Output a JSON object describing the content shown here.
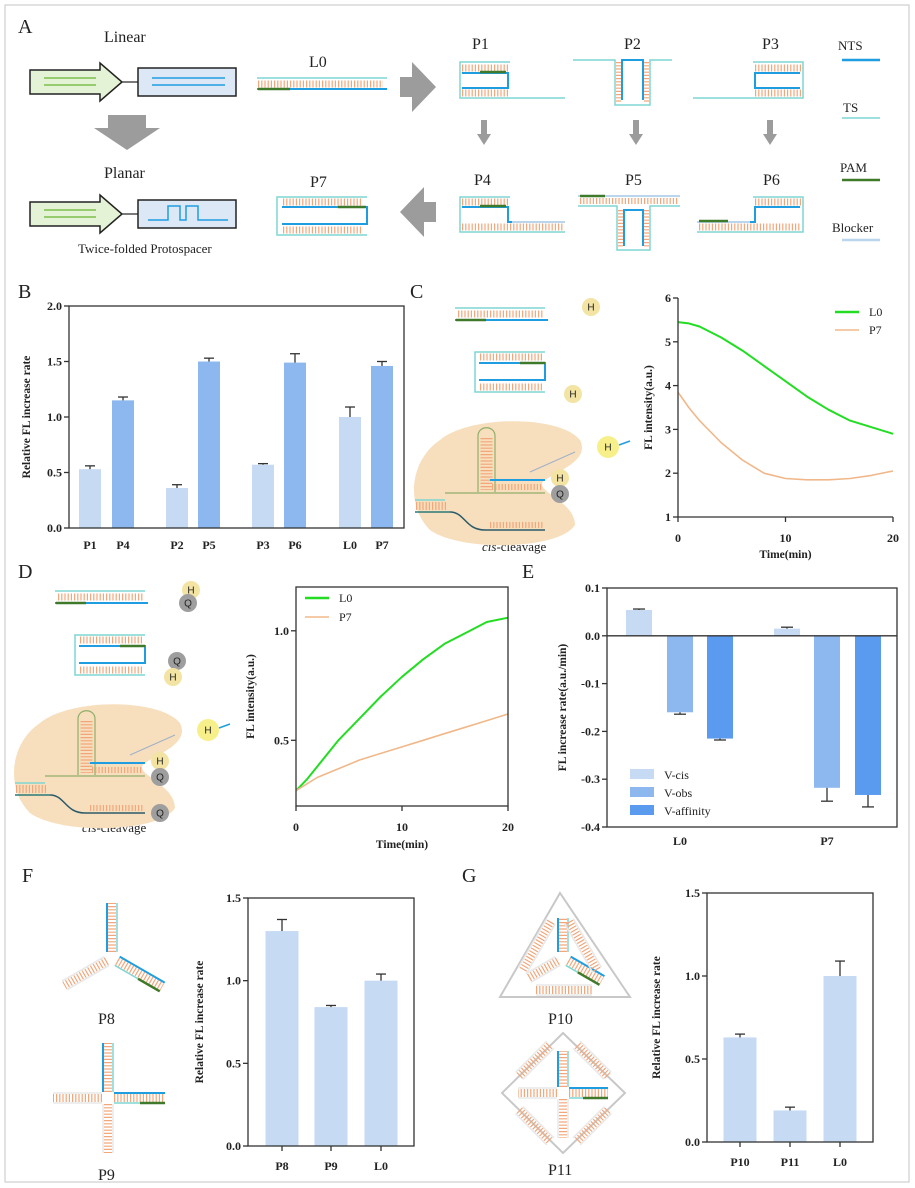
{
  "panels": {
    "A": "A",
    "B": "B",
    "C": "C",
    "D": "D",
    "E": "E",
    "F": "F",
    "G": "G"
  },
  "panel_a": {
    "linear": "Linear",
    "planar": "Planar",
    "twice_folded": "Twice-folded Protospacer",
    "structures": {
      "L0": "L0",
      "P1": "P1",
      "P2": "P2",
      "P3": "P3",
      "P4": "P4",
      "P5": "P5",
      "P6": "P6",
      "P7": "P7"
    },
    "legend": [
      {
        "label": "NTS",
        "color": "#1e9ee0"
      },
      {
        "label": "TS",
        "color": "#7fd6d2"
      },
      {
        "label": "PAM",
        "color": "#3f7a2a"
      },
      {
        "label": "Blocker",
        "color": "#b9d6ee"
      }
    ]
  },
  "panel_c": {
    "hex": "H",
    "quencher": "Q",
    "caption_italic": "cis",
    "caption_rest": "-cleavage"
  },
  "panel_d": {
    "hex": "H",
    "quencher": "Q",
    "caption_italic": "cis",
    "caption_rest": "-cleavage"
  },
  "panel_f": {
    "structures": {
      "P8": "P8",
      "P9": "P9"
    }
  },
  "panel_g": {
    "structures": {
      "P10": "P10",
      "P11": "P11"
    }
  },
  "colors": {
    "light_bar": "#c6daf4",
    "mid_bar": "#8db8ef",
    "dark_bar": "#5a9bef",
    "L0_line": "#22dd22",
    "P7_line": "#f0b88a",
    "NTS": "#1e9ee0",
    "TS": "#7fd6d2",
    "PAM": "#3f7a2a",
    "rungs": "#f2a67a",
    "cas": "#f7dfbd",
    "hex": "#f3e4a4",
    "quencher": "#9e9e9e"
  },
  "chart_data": [
    {
      "panel": "B",
      "type": "bar",
      "categories": [
        "P1",
        "P4",
        "P2",
        "P5",
        "P3",
        "P6",
        "L0",
        "P7"
      ],
      "values": [
        0.53,
        1.15,
        0.36,
        1.5,
        0.57,
        1.49,
        1.0,
        1.46
      ],
      "errors": [
        0.03,
        0.03,
        0.03,
        0.03,
        0.01,
        0.08,
        0.09,
        0.04
      ],
      "bar_colors": [
        "#c6daf4",
        "#8db8ef",
        "#c6daf4",
        "#8db8ef",
        "#c6daf4",
        "#8db8ef",
        "#c6daf4",
        "#8db8ef"
      ],
      "ylabel": "Relative FL increase rate",
      "xlabel": "",
      "ylim": [
        0,
        2
      ],
      "yticks": [
        0,
        0.5,
        1,
        1.5,
        2
      ],
      "ytick_labels": [
        "0.0",
        "0.5",
        "1.0",
        "1.5",
        "2.0"
      ],
      "grid": false
    },
    {
      "panel": "C",
      "type": "line",
      "x": [
        0,
        1,
        2,
        4,
        6,
        8,
        10,
        12,
        14,
        16,
        18,
        20
      ],
      "series": [
        {
          "name": "L0",
          "color": "#22dd22",
          "values": [
            5.45,
            5.42,
            5.35,
            5.1,
            4.8,
            4.45,
            4.1,
            3.75,
            3.45,
            3.2,
            3.05,
            2.9
          ]
        },
        {
          "name": "P7",
          "color": "#f0b88a",
          "values": [
            3.85,
            3.5,
            3.2,
            2.7,
            2.3,
            2.0,
            1.88,
            1.85,
            1.85,
            1.88,
            1.95,
            2.05
          ]
        }
      ],
      "xlabel": "Time(min)",
      "ylabel": "FL intensity(a.u.)",
      "xlim": [
        0,
        20
      ],
      "xticks": [
        0,
        10,
        20
      ],
      "xtick_labels": [
        "0",
        "10",
        "20"
      ],
      "ylim": [
        1,
        6
      ],
      "yticks": [
        1,
        2,
        3,
        4,
        5,
        6
      ],
      "ytick_labels": [
        "1",
        "2",
        "3",
        "4",
        "5",
        "6"
      ],
      "legend": "top-right",
      "grid": false
    },
    {
      "panel": "D",
      "type": "line",
      "x": [
        0,
        1,
        2,
        4,
        6,
        8,
        10,
        12,
        14,
        16,
        18,
        20
      ],
      "series": [
        {
          "name": "L0",
          "color": "#22dd22",
          "values": [
            0.27,
            0.32,
            0.38,
            0.5,
            0.6,
            0.7,
            0.79,
            0.87,
            0.94,
            0.99,
            1.04,
            1.06
          ]
        },
        {
          "name": "P7",
          "color": "#f0b88a",
          "values": [
            0.27,
            0.3,
            0.33,
            0.37,
            0.41,
            0.44,
            0.47,
            0.5,
            0.53,
            0.56,
            0.59,
            0.62
          ]
        }
      ],
      "xlabel": "Time(min)",
      "ylabel": "FL intensity(a.u.)",
      "xlim": [
        0,
        20
      ],
      "xticks": [
        0,
        10,
        20
      ],
      "xtick_labels": [
        "0",
        "10",
        "20"
      ],
      "ylim": [
        0.2,
        1.2
      ],
      "yticks": [
        0.5,
        1.0
      ],
      "ytick_labels": [
        "0.5",
        "1.0"
      ],
      "legend": "top-left",
      "grid": false
    },
    {
      "panel": "E",
      "type": "bar",
      "categories": [
        "L0",
        "P7"
      ],
      "series": [
        {
          "name": "V-cis",
          "color": "#c6daf4",
          "values": [
            0.054,
            0.015
          ],
          "errors": [
            0.002,
            0.003
          ]
        },
        {
          "name": "V-obs",
          "color": "#8db8ef",
          "values": [
            -0.16,
            -0.318
          ],
          "errors": [
            0.004,
            0.028
          ]
        },
        {
          "name": "V-affinity",
          "color": "#5a9bef",
          "values": [
            -0.215,
            -0.333
          ],
          "errors": [
            0.003,
            0.025
          ]
        }
      ],
      "ylabel": "FL increase rate(a.u./min)",
      "xlabel": "",
      "ylim": [
        -0.4,
        0.1
      ],
      "yticks": [
        0.1,
        0,
        -0.1,
        -0.2,
        -0.3,
        -0.4
      ],
      "ytick_labels": [
        "0.1",
        "0.0",
        "-0.1",
        "-0.2",
        "-0.3",
        "-0.4"
      ],
      "legend": "bottom-left",
      "grid": false
    },
    {
      "panel": "F",
      "type": "bar",
      "categories": [
        "P8",
        "P9",
        "L0"
      ],
      "values": [
        1.3,
        0.84,
        1.0
      ],
      "errors": [
        0.07,
        0.01,
        0.04
      ],
      "bar_colors": [
        "#c6daf4",
        "#c6daf4",
        "#c6daf4"
      ],
      "ylabel": "Relative FL increase rate",
      "xlabel": "",
      "ylim": [
        0,
        1.5
      ],
      "yticks": [
        0,
        0.5,
        1,
        1.5
      ],
      "ytick_labels": [
        "0.0",
        "0.5",
        "1.0",
        "1.5"
      ],
      "grid": false
    },
    {
      "panel": "G",
      "type": "bar",
      "categories": [
        "P10",
        "P11",
        "L0"
      ],
      "values": [
        0.63,
        0.19,
        1.0
      ],
      "errors": [
        0.02,
        0.02,
        0.09
      ],
      "bar_colors": [
        "#c6daf4",
        "#c6daf4",
        "#c6daf4"
      ],
      "ylabel": "Relative FL increase rate",
      "xlabel": "",
      "ylim": [
        0,
        1.5
      ],
      "yticks": [
        0,
        0.5,
        1,
        1.5
      ],
      "ytick_labels": [
        "0.0",
        "0.5",
        "1.0",
        "1.5"
      ],
      "grid": false
    }
  ]
}
